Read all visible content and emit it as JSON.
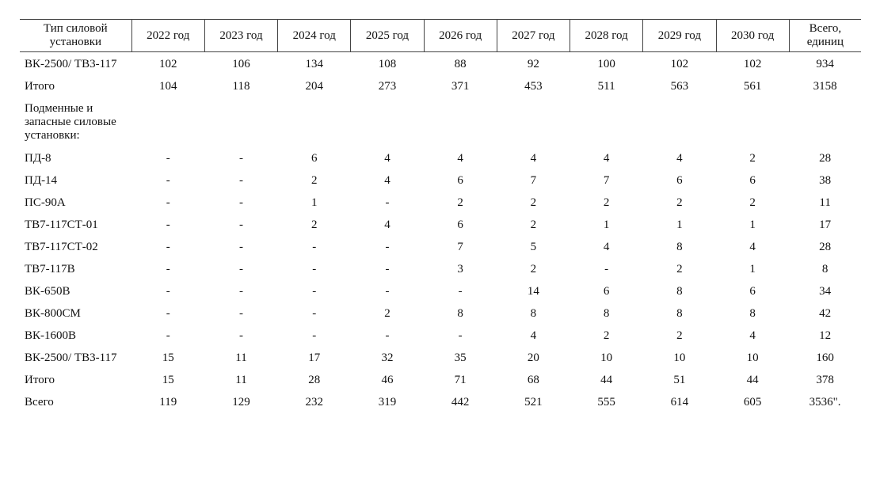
{
  "table": {
    "headers": [
      "Тип силовой установки",
      "2022 год",
      "2023 год",
      "2024 год",
      "2025 год",
      "2026 год",
      "2027 год",
      "2028 год",
      "2029 год",
      "2030 год",
      "Всего, единиц"
    ],
    "rows": [
      {
        "label": "ВК-2500/ ТВ3-117",
        "values": [
          "102",
          "106",
          "134",
          "108",
          "88",
          "92",
          "100",
          "102",
          "102",
          "934"
        ]
      },
      {
        "label": "Итого",
        "values": [
          "104",
          "118",
          "204",
          "273",
          "371",
          "453",
          "511",
          "563",
          "561",
          "3158"
        ]
      },
      {
        "label": "Подменные и запасные силовые установки:",
        "values": [
          "",
          "",
          "",
          "",
          "",
          "",
          "",
          "",
          "",
          ""
        ]
      },
      {
        "label": "ПД-8",
        "values": [
          "-",
          "-",
          "6",
          "4",
          "4",
          "4",
          "4",
          "4",
          "2",
          "28"
        ]
      },
      {
        "label": "ПД-14",
        "values": [
          "-",
          "-",
          "2",
          "4",
          "6",
          "7",
          "7",
          "6",
          "6",
          "38"
        ]
      },
      {
        "label": "ПС-90А",
        "values": [
          "-",
          "-",
          "1",
          "-",
          "2",
          "2",
          "2",
          "2",
          "2",
          "11"
        ]
      },
      {
        "label": "ТВ7-117СТ-01",
        "values": [
          "-",
          "-",
          "2",
          "4",
          "6",
          "2",
          "1",
          "1",
          "1",
          "17"
        ]
      },
      {
        "label": "ТВ7-117СТ-02",
        "values": [
          "-",
          "-",
          "-",
          "-",
          "7",
          "5",
          "4",
          "8",
          "4",
          "28"
        ]
      },
      {
        "label": "ТВ7-117В",
        "values": [
          "-",
          "-",
          "-",
          "-",
          "3",
          "2",
          "-",
          "2",
          "1",
          "8"
        ]
      },
      {
        "label": "ВК-650В",
        "values": [
          "-",
          "-",
          "-",
          "-",
          "-",
          "14",
          "6",
          "8",
          "6",
          "34"
        ]
      },
      {
        "label": "ВК-800СМ",
        "values": [
          "-",
          "-",
          "-",
          "2",
          "8",
          "8",
          "8",
          "8",
          "8",
          "42"
        ]
      },
      {
        "label": "ВК-1600В",
        "values": [
          "-",
          "-",
          "-",
          "-",
          "-",
          "4",
          "2",
          "2",
          "4",
          "12"
        ]
      },
      {
        "label": "ВК-2500/ ТВ3-117",
        "values": [
          "15",
          "11",
          "17",
          "32",
          "35",
          "20",
          "10",
          "10",
          "10",
          "160"
        ]
      },
      {
        "label": "Итого",
        "values": [
          "15",
          "11",
          "28",
          "46",
          "71",
          "68",
          "44",
          "51",
          "44",
          "378"
        ]
      },
      {
        "label": "Всего",
        "values": [
          "119",
          "129",
          "232",
          "319",
          "442",
          "521",
          "555",
          "614",
          "605",
          "3536\"."
        ]
      }
    ]
  }
}
